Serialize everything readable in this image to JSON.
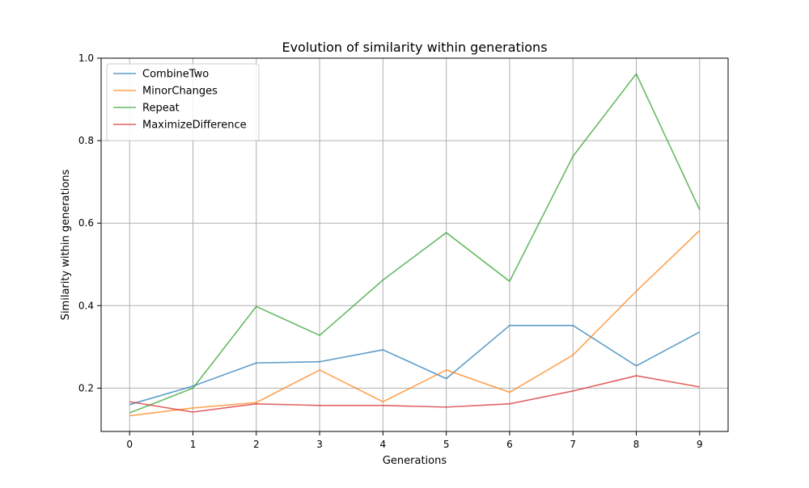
{
  "chart_data": {
    "type": "line",
    "title": "Evolution of similarity within generations",
    "xlabel": "Generations",
    "ylabel": "Similarity within generations",
    "x": [
      0,
      1,
      2,
      3,
      4,
      5,
      6,
      7,
      8,
      9
    ],
    "xlim": [
      -0.45,
      9.45
    ],
    "ylim": [
      0.095,
      1.0
    ],
    "xticks": [
      0,
      1,
      2,
      3,
      4,
      5,
      6,
      7,
      8,
      9
    ],
    "yticks": [
      0.2,
      0.4,
      0.6,
      0.8,
      1.0
    ],
    "ytick_labels": [
      "0.2",
      "0.4",
      "0.6",
      "0.8",
      "1.0"
    ],
    "grid": true,
    "legend_position": "top-left",
    "series": [
      {
        "name": "CombineTwo",
        "color": "#1f77b4",
        "values": [
          0.16,
          0.205,
          0.261,
          0.264,
          0.293,
          0.223,
          0.352,
          0.352,
          0.254,
          0.336
        ]
      },
      {
        "name": "MinorChanges",
        "color": "#ff7f0e",
        "values": [
          0.133,
          0.152,
          0.165,
          0.244,
          0.167,
          0.244,
          0.19,
          0.28,
          0.435,
          0.582
        ]
      },
      {
        "name": "Repeat",
        "color": "#2ca02c",
        "values": [
          0.14,
          0.2,
          0.398,
          0.328,
          0.462,
          0.577,
          0.459,
          0.762,
          0.962,
          0.633
        ]
      },
      {
        "name": "MaximizeDifference",
        "color": "#d62728",
        "values": [
          0.167,
          0.142,
          0.162,
          0.158,
          0.158,
          0.154,
          0.162,
          0.193,
          0.23,
          0.203
        ]
      }
    ]
  }
}
